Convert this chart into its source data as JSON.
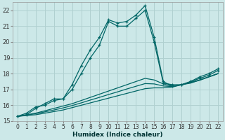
{
  "xlabel": "Humidex (Indice chaleur)",
  "bg_color": "#cce8e8",
  "grid_color": "#b0d0d0",
  "line_color": "#006666",
  "xlim": [
    -0.5,
    22.5
  ],
  "ylim": [
    15,
    22.5
  ],
  "xticks": [
    0,
    1,
    2,
    3,
    4,
    5,
    6,
    7,
    8,
    9,
    10,
    11,
    12,
    13,
    14,
    15,
    16,
    17,
    18,
    19,
    20,
    21,
    22
  ],
  "yticks": [
    15,
    16,
    17,
    18,
    19,
    20,
    21,
    22
  ],
  "series": [
    {
      "x": [
        0,
        1,
        2,
        3,
        4,
        5,
        6,
        7,
        8,
        9,
        10,
        11,
        12,
        13,
        14,
        15,
        16,
        17,
        18,
        19,
        20,
        21,
        22
      ],
      "y": [
        15.3,
        15.5,
        15.9,
        16.0,
        16.3,
        16.4,
        17.3,
        18.5,
        19.5,
        20.3,
        21.4,
        21.2,
        21.3,
        21.7,
        22.3,
        20.3,
        17.5,
        17.2,
        17.3,
        17.5,
        17.8,
        18.0,
        18.3
      ],
      "marker": "+"
    },
    {
      "x": [
        0,
        1,
        2,
        3,
        4,
        5,
        6,
        7,
        8,
        9,
        10,
        11,
        12,
        13,
        14,
        15,
        16,
        17,
        18,
        19,
        20,
        21,
        22
      ],
      "y": [
        15.3,
        15.4,
        15.8,
        16.1,
        16.4,
        16.4,
        17.0,
        18.0,
        19.0,
        19.8,
        21.3,
        21.0,
        21.0,
        21.5,
        22.0,
        20.0,
        17.4,
        17.3,
        17.3,
        17.5,
        17.7,
        17.9,
        18.2
      ],
      "marker": "+"
    },
    {
      "x": [
        0,
        1,
        2,
        3,
        4,
        5,
        6,
        7,
        8,
        9,
        10,
        11,
        12,
        13,
        14,
        15,
        16,
        17,
        18,
        19,
        20,
        21,
        22
      ],
      "y": [
        15.3,
        15.4,
        15.5,
        15.65,
        15.8,
        15.95,
        16.1,
        16.3,
        16.5,
        16.7,
        16.9,
        17.1,
        17.3,
        17.5,
        17.7,
        17.6,
        17.35,
        17.2,
        17.3,
        17.4,
        17.6,
        17.8,
        18.0
      ],
      "marker": null
    },
    {
      "x": [
        0,
        1,
        2,
        3,
        4,
        5,
        6,
        7,
        8,
        9,
        10,
        11,
        12,
        13,
        14,
        15,
        16,
        17,
        18,
        19,
        20,
        21,
        22
      ],
      "y": [
        15.3,
        15.35,
        15.4,
        15.5,
        15.6,
        15.7,
        15.85,
        16.0,
        16.15,
        16.3,
        16.45,
        16.6,
        16.75,
        16.9,
        17.05,
        17.1,
        17.1,
        17.15,
        17.3,
        17.45,
        17.6,
        17.8,
        18.0
      ],
      "marker": null
    },
    {
      "x": [
        0,
        1,
        2,
        3,
        4,
        5,
        6,
        7,
        8,
        9,
        10,
        11,
        12,
        13,
        14,
        15,
        16,
        17,
        18,
        19,
        20,
        21,
        22
      ],
      "y": [
        15.3,
        15.37,
        15.47,
        15.58,
        15.7,
        15.83,
        15.98,
        16.15,
        16.33,
        16.5,
        16.68,
        16.85,
        17.03,
        17.2,
        17.37,
        17.35,
        17.22,
        17.18,
        17.3,
        17.43,
        17.58,
        17.79,
        18.0
      ],
      "marker": null
    }
  ]
}
